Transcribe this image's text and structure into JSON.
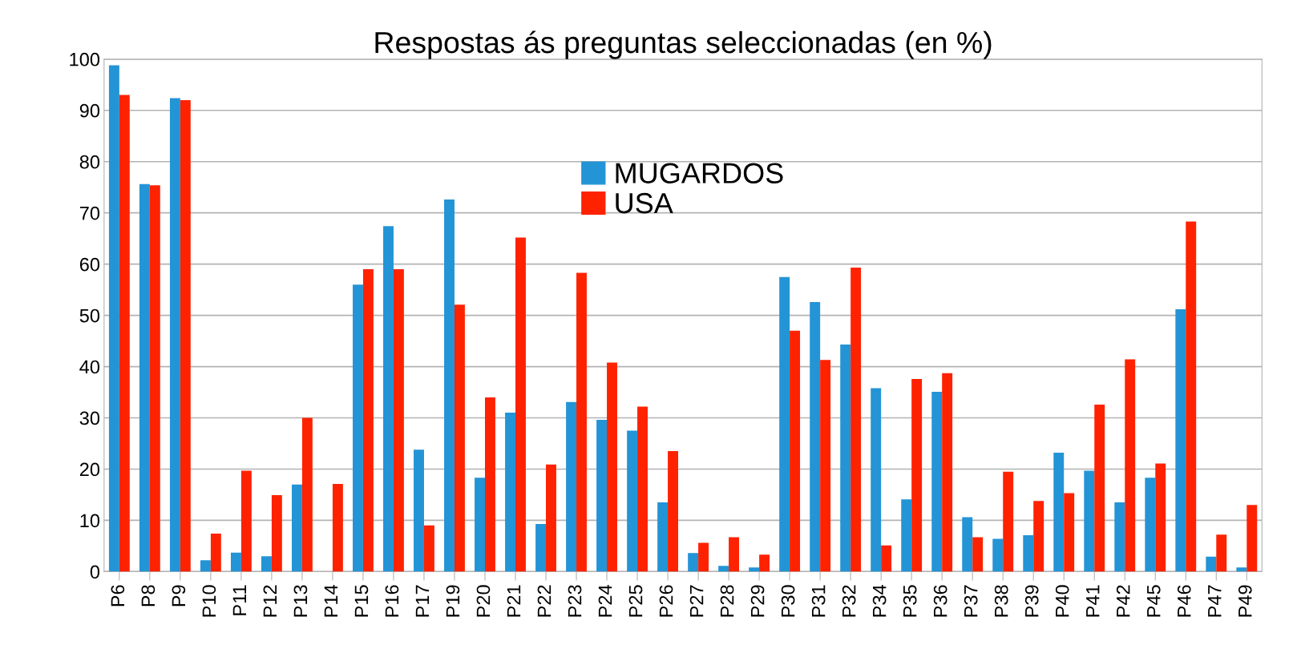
{
  "chart_data": {
    "type": "bar",
    "title": "Respostas ás preguntas seleccionadas (en %)",
    "categories": [
      "P6",
      "P8",
      "P9",
      "P10",
      "P11",
      "P12",
      "P13",
      "P14",
      "P15",
      "P16",
      "P17",
      "P19",
      "P20",
      "P21",
      "P22",
      "P23",
      "P24",
      "P25",
      "P26",
      "P27",
      "P28",
      "P29",
      "P30",
      "P31",
      "P32",
      "P34",
      "P35",
      "P36",
      "P37",
      "P38",
      "P39",
      "P40",
      "P41",
      "P42",
      "P45",
      "P46",
      "P47",
      "P49"
    ],
    "series": [
      {
        "name": "MUGARDOS",
        "color": "#2394d6",
        "values": [
          98.8,
          75.6,
          92.4,
          2.2,
          3.7,
          3,
          17,
          0,
          56,
          67.4,
          23.8,
          72.6,
          18.3,
          31,
          9.3,
          33.1,
          29.6,
          27.5,
          13.5,
          3.6,
          1.1,
          0.8,
          57.5,
          52.6,
          44.3,
          35.8,
          14.1,
          35.1,
          10.6,
          6.4,
          7.1,
          23.2,
          19.7,
          13.5,
          18.3,
          51.2,
          2.9,
          0.8
        ]
      },
      {
        "name": "USA",
        "color": "#ff2200",
        "values": [
          93,
          75.4,
          92,
          7.4,
          19.7,
          14.9,
          30,
          17.1,
          59,
          59,
          9,
          52.1,
          34,
          65.2,
          20.9,
          58.3,
          40.8,
          32.2,
          23.5,
          5.6,
          6.7,
          3.3,
          47,
          41.3,
          59.3,
          5.1,
          37.6,
          38.7,
          6.7,
          19.5,
          13.8,
          15.3,
          32.6,
          41.4,
          21.1,
          68.3,
          7.2,
          13
        ]
      }
    ],
    "ylim": [
      0,
      100
    ],
    "yticks": [
      0,
      10,
      20,
      30,
      40,
      50,
      60,
      70,
      80,
      90,
      100
    ],
    "grid": "y",
    "legend": "top center"
  }
}
